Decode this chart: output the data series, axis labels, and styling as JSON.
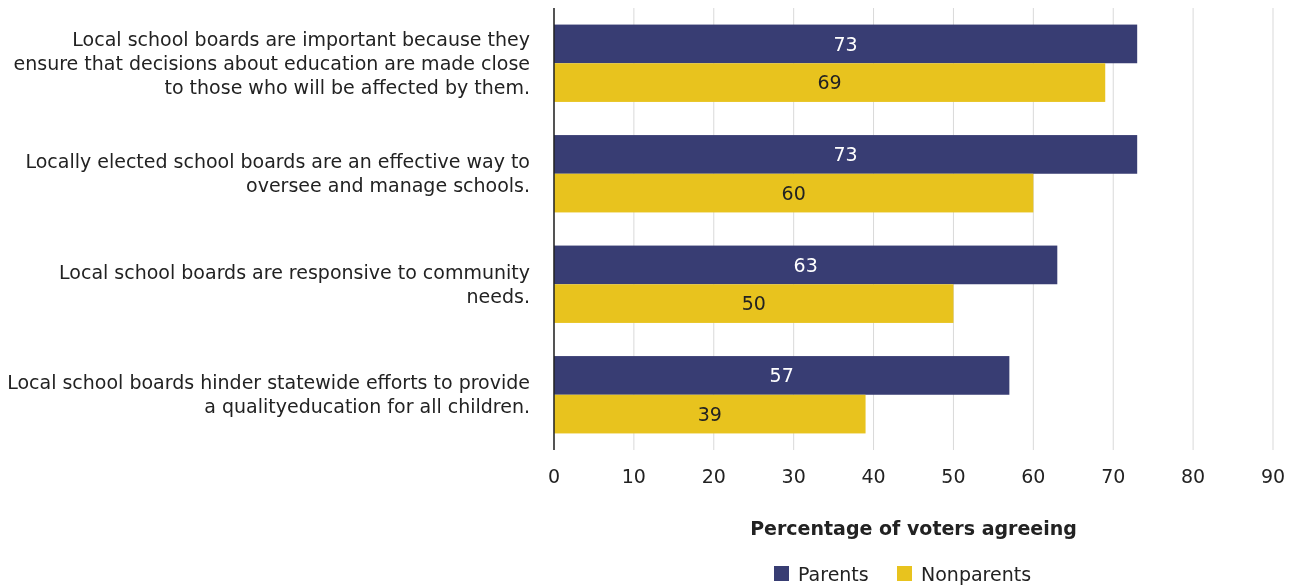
{
  "chart_data": {
    "type": "bar",
    "orientation": "horizontal",
    "xlabel": "Percentage of voters agreeing",
    "categories": [
      "Local school boards are important because they ensure that decisions about education are made close to those who will be affected by them.",
      "Locally elected school boards are an effective way to oversee and manage schools.",
      "Local school boards are responsive to community needs.",
      "Local school boards hinder statewide efforts to provide a qualityeducation for all children."
    ],
    "series": [
      {
        "name": "Parents",
        "color": "#383d73",
        "values": [
          73,
          73,
          63,
          57
        ]
      },
      {
        "name": "Nonparents",
        "color": "#e8c31e",
        "values": [
          69,
          60,
          50,
          39
        ]
      }
    ],
    "xlim": [
      0,
      90
    ],
    "xticks": [
      0,
      10,
      20,
      30,
      40,
      50,
      60,
      70,
      80,
      90
    ],
    "grid": "x",
    "legend": "bottom",
    "data_labels": true
  }
}
